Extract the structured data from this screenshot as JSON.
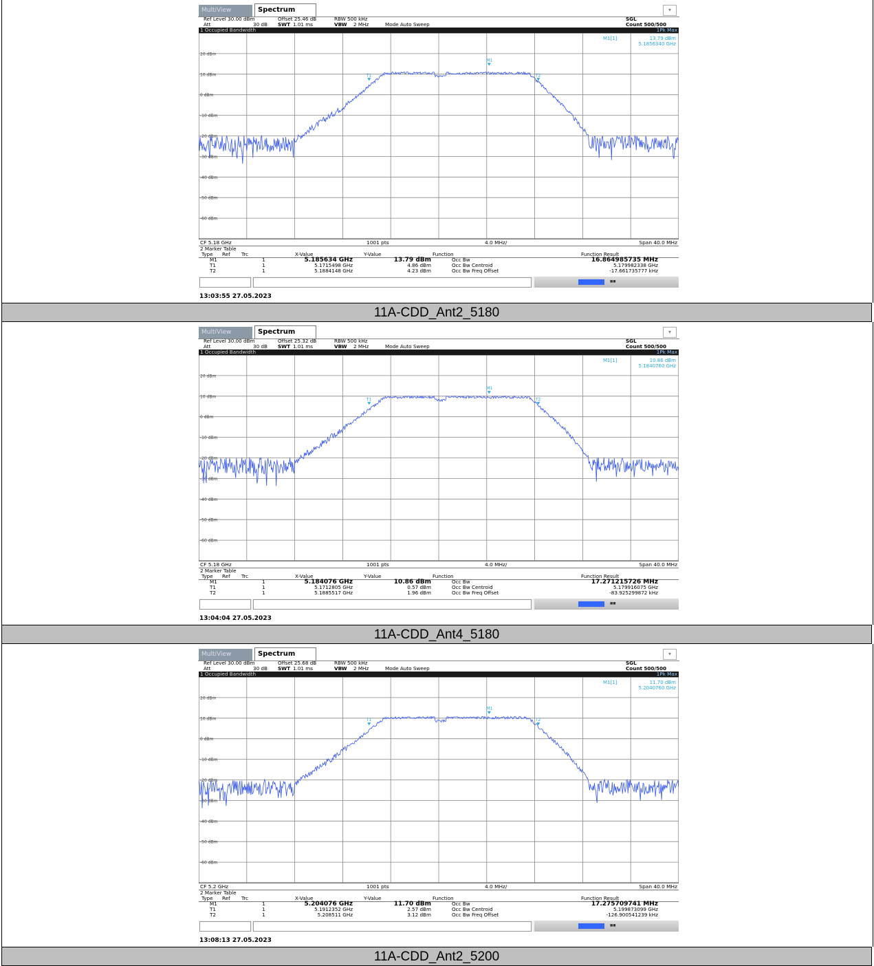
{
  "panels": [
    {
      "tab_mv": "MultiView",
      "tab_spectrum": "Spectrum",
      "ref_level": "Ref Level 30.00 dBm",
      "offset": "Offset 25.46 dB",
      "rbw": "RBW 500 kHz",
      "att": "Att",
      "att_val": "30 dB",
      "swt": "SWT",
      "swt_val": "1.01 ms",
      "vbw": "VBW",
      "vbw_val": "2 MHz",
      "mode": "Mode Auto Sweep",
      "sgl": "SGL",
      "count": "Count 500/500",
      "title": "1 Occupied Bandwidth",
      "trace": "1Pk Max",
      "m1_label": "M1[1]",
      "m1_level": "13.79 dBm",
      "m1_freq": "5.1856340 GHz",
      "ylabels": [
        "20 dBm",
        "10 dBm",
        "0 dBm",
        "-10 dBm",
        "-20 dBm",
        "-30 dBm",
        "-40 dBm",
        "-50 dBm",
        "-60 dBm"
      ],
      "cf": "CF 5.18 GHz",
      "pts": "1001 pts",
      "div": "4.0 MHz/",
      "span": "Span 40.0 MHz",
      "mt_title": "2 Marker Table",
      "mt_headers": [
        "Type",
        "Ref",
        "Trc",
        "X-Value",
        "Y-Value",
        "Function",
        "Function Result"
      ],
      "rows": [
        {
          "type": "M1",
          "trc": "1",
          "x": "5.185634 GHz",
          "y": "13.79 dBm",
          "fn": "Occ Bw",
          "res": "16.864985735 MHz"
        },
        {
          "type": "T1",
          "trc": "1",
          "x": "5.1715498 GHz",
          "y": "4.86 dBm",
          "fn": "Occ Bw Centroid",
          "res": "5.179982338 GHz"
        },
        {
          "type": "T2",
          "trc": "1",
          "x": "5.1884148 GHz",
          "y": "4.23 dBm",
          "fn": "Occ Bw Freq Offset",
          "res": "-17.661735777 kHz"
        }
      ],
      "stamp": "13:03:55 27.05.2023",
      "caption": "11A-CDD_Ant2_5180",
      "trace_color": "#3355ff",
      "m1_level_db": 13.79,
      "plateau_db": 10.5
    },
    {
      "tab_mv": "MultiView",
      "tab_spectrum": "Spectrum",
      "ref_level": "Ref Level 30.00 dBm",
      "offset": "Offset 25.32 dB",
      "rbw": "RBW 500 kHz",
      "att": "Att",
      "att_val": "30 dB",
      "swt": "SWT",
      "swt_val": "1.01 ms",
      "vbw": "VBW",
      "vbw_val": "2 MHz",
      "mode": "Mode Auto Sweep",
      "sgl": "SGL",
      "count": "Count 500/500",
      "title": "1 Occupied Bandwidth",
      "trace": "1Pk Max",
      "m1_label": "M1[1]",
      "m1_level": "10.86 dBm",
      "m1_freq": "5.1840760 GHz",
      "ylabels": [
        "20 dBm",
        "10 dBm",
        "0 dBm",
        "-10 dBm",
        "-20 dBm",
        "-30 dBm",
        "-40 dBm",
        "-50 dBm",
        "-60 dBm"
      ],
      "cf": "CF 5.18 GHz",
      "pts": "1001 pts",
      "div": "4.0 MHz/",
      "span": "Span 40.0 MHz",
      "mt_title": "2 Marker Table",
      "mt_headers": [
        "Type",
        "Ref",
        "Trc",
        "X-Value",
        "Y-Value",
        "Function",
        "Function Result"
      ],
      "rows": [
        {
          "type": "M1",
          "trc": "1",
          "x": "5.184076 GHz",
          "y": "10.86 dBm",
          "fn": "Occ Bw",
          "res": "17.271215726 MHz"
        },
        {
          "type": "T1",
          "trc": "1",
          "x": "5.1712805 GHz",
          "y": "0.57 dBm",
          "fn": "Occ Bw Centroid",
          "res": "5.179916075 GHz"
        },
        {
          "type": "T2",
          "trc": "1",
          "x": "5.1885517 GHz",
          "y": "1.96 dBm",
          "fn": "Occ Bw Freq Offset",
          "res": "-83.925299872 kHz"
        }
      ],
      "stamp": "13:04:04 27.05.2023",
      "caption": "11A-CDD_Ant4_5180",
      "trace_color": "#3355ff",
      "m1_level_db": 10.86,
      "plateau_db": 9.5
    },
    {
      "tab_mv": "MultiView",
      "tab_spectrum": "Spectrum",
      "ref_level": "Ref Level 30.00 dBm",
      "offset": "Offset 25.68 dB",
      "rbw": "RBW 500 kHz",
      "att": "Att",
      "att_val": "30 dB",
      "swt": "SWT",
      "swt_val": "1.01 ms",
      "vbw": "VBW",
      "vbw_val": "2 MHz",
      "mode": "Mode Auto Sweep",
      "sgl": "SGL",
      "count": "Count 500/500",
      "title": "1 Occupied Bandwidth",
      "trace": "1Pk Max",
      "m1_label": "M1[1]",
      "m1_level": "11.70 dBm",
      "m1_freq": "5.2040760 GHz",
      "ylabels": [
        "20 dBm",
        "10 dBm",
        "0 dBm",
        "-10 dBm",
        "-20 dBm",
        "-30 dBm",
        "-40 dBm",
        "-50 dBm",
        "-60 dBm"
      ],
      "cf": "CF 5.2 GHz",
      "pts": "1001 pts",
      "div": "4.0 MHz/",
      "span": "Span 40.0 MHz",
      "mt_title": "2 Marker Table",
      "mt_headers": [
        "Type",
        "Ref",
        "Trc",
        "X-Value",
        "Y-Value",
        "Function",
        "Function Result"
      ],
      "rows": [
        {
          "type": "M1",
          "trc": "1",
          "x": "5.204076 GHz",
          "y": "11.70 dBm",
          "fn": "Occ Bw",
          "res": "17.275709741 MHz"
        },
        {
          "type": "T1",
          "trc": "1",
          "x": "5.1912352 GHz",
          "y": "2.57 dBm",
          "fn": "Occ Bw Centroid",
          "res": "5.199873099 GHz"
        },
        {
          "type": "T2",
          "trc": "1",
          "x": "5.208511 GHz",
          "y": "3.12 dBm",
          "fn": "Occ Bw Freq Offset",
          "res": "-126.900541239 kHz"
        }
      ],
      "stamp": "13:08:13 27.05.2023",
      "caption": "11A-CDD_Ant2_5200",
      "trace_color": "#3355ff",
      "m1_level_db": 11.7,
      "plateau_db": 10.2
    }
  ]
}
